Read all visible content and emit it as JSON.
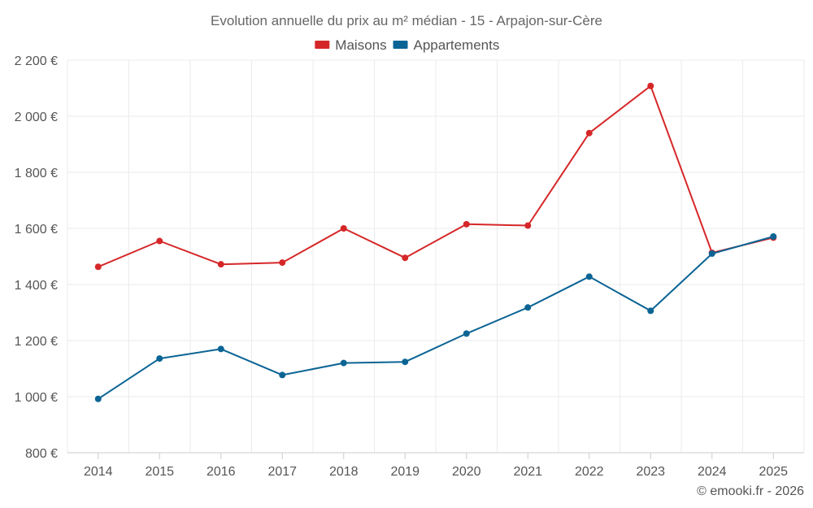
{
  "chart_data": {
    "type": "line",
    "title": "Evolution annuelle du prix au m² médian - 15 - Arpajon-sur-Cère",
    "categories": [
      "2014",
      "2015",
      "2016",
      "2017",
      "2018",
      "2019",
      "2020",
      "2021",
      "2022",
      "2023",
      "2024",
      "2025"
    ],
    "series": [
      {
        "name": "Maisons",
        "color": "#d62728",
        "values": [
          1463,
          1555,
          1472,
          1478,
          1600,
          1495,
          1615,
          1610,
          1940,
          2108,
          1513,
          1567
        ]
      },
      {
        "name": "Appartements",
        "color": "#0b6494",
        "values": [
          992,
          1136,
          1170,
          1077,
          1120,
          1124,
          1225,
          1318,
          1428,
          1306,
          1510,
          1571
        ]
      }
    ],
    "ylim": [
      800,
      2200
    ],
    "yticks": [
      800,
      1000,
      1200,
      1400,
      1600,
      1800,
      2000,
      2200
    ],
    "ytick_labels": [
      "800 €",
      "1 000 €",
      "1 200 €",
      "1 400 €",
      "1 600 €",
      "1 800 €",
      "2 000 €",
      "2 200 €"
    ],
    "grid": true,
    "legend_position": "top-center",
    "credit": "© emooki.fr - 2026"
  }
}
